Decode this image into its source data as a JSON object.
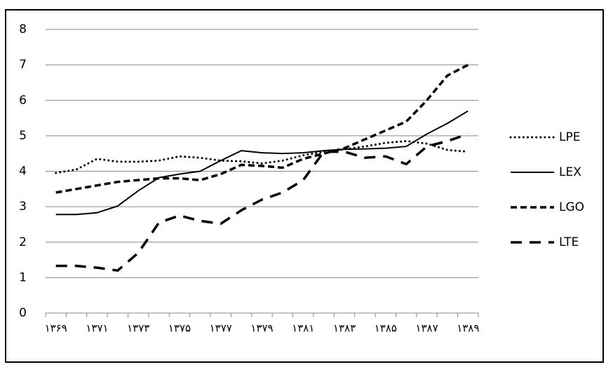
{
  "chart_data": {
    "type": "line",
    "categories": [
      "۱۳۶۹",
      null,
      "۱۳۷۱",
      null,
      "۱۳۷۳",
      null,
      "۱۳۷۵",
      null,
      "۱۳۷۷",
      null,
      "۱۳۷۹",
      null,
      "۱۳۸۱",
      null,
      "۱۳۸۳",
      null,
      "۱۳۸۵",
      null,
      "۱۳۸۷",
      null,
      "۱۳۸۹"
    ],
    "series": [
      {
        "name": "LPE",
        "color": "#000000",
        "values": [
          3.95,
          4.05,
          4.35,
          4.27,
          4.27,
          4.3,
          4.42,
          4.38,
          4.3,
          4.28,
          4.22,
          4.3,
          4.45,
          4.55,
          4.62,
          4.7,
          4.8,
          4.85,
          4.78,
          4.6,
          4.55
        ]
      },
      {
        "name": "LEX",
        "color": "#000000",
        "values": [
          2.78,
          2.78,
          2.83,
          3.02,
          3.45,
          3.82,
          3.92,
          4.0,
          4.3,
          4.58,
          4.52,
          4.5,
          4.52,
          4.58,
          4.62,
          4.63,
          4.65,
          4.7,
          5.05,
          5.35,
          5.7
        ]
      },
      {
        "name": "LGO",
        "color": "#000000",
        "values": [
          3.4,
          3.5,
          3.6,
          3.7,
          3.75,
          3.8,
          3.8,
          3.75,
          3.92,
          4.18,
          4.15,
          4.1,
          4.35,
          4.5,
          4.65,
          4.9,
          5.15,
          5.4,
          6.0,
          6.7,
          7.0
        ]
      },
      {
        "name": "LTE",
        "color": "#000000",
        "values": [
          1.33,
          1.33,
          1.28,
          1.2,
          1.7,
          2.55,
          2.75,
          2.6,
          2.52,
          2.9,
          3.2,
          3.4,
          3.75,
          4.55,
          4.55,
          4.38,
          4.42,
          4.2,
          4.7,
          4.85,
          5.05
        ]
      }
    ],
    "ylim": [
      0,
      8
    ],
    "yticks": [
      0,
      1,
      2,
      3,
      4,
      5,
      6,
      7,
      8
    ],
    "grid": true,
    "legend": "right"
  }
}
